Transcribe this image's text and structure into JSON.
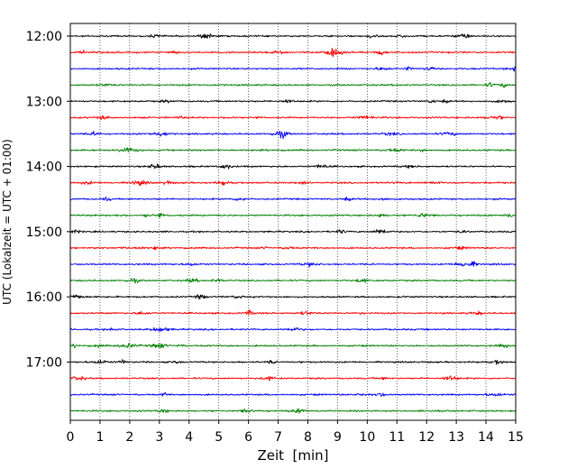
{
  "chart_data": {
    "type": "line",
    "subtype": "helicorder",
    "xlabel": "Zeit  [min]",
    "ylabel": "UTC (Lokalzeit = UTC + 01:00)",
    "xlim": [
      0,
      15
    ],
    "x_ticks": [
      0,
      1,
      2,
      3,
      4,
      5,
      6,
      7,
      8,
      9,
      10,
      11,
      12,
      13,
      14,
      15
    ],
    "x_tick_labels": [
      "0",
      "1",
      "2",
      "3",
      "4",
      "5",
      "6",
      "7",
      "8",
      "9",
      "10",
      "11",
      "12",
      "13",
      "14",
      "15"
    ],
    "y_tick_labels": [
      "12:00",
      "13:00",
      "14:00",
      "15:00",
      "16:00",
      "17:00"
    ],
    "grid": "vertical dotted",
    "trace_interval_minutes": 15,
    "trace_colors": [
      "#000000",
      "#ff0000",
      "#0000ff",
      "#008000"
    ],
    "traces": [
      {
        "start": "12:00",
        "color": "#000000"
      },
      {
        "start": "12:15",
        "color": "#ff0000"
      },
      {
        "start": "12:30",
        "color": "#0000ff"
      },
      {
        "start": "12:45",
        "color": "#008000"
      },
      {
        "start": "13:00",
        "color": "#000000"
      },
      {
        "start": "13:15",
        "color": "#ff0000"
      },
      {
        "start": "13:30",
        "color": "#0000ff"
      },
      {
        "start": "13:45",
        "color": "#008000"
      },
      {
        "start": "14:00",
        "color": "#000000"
      },
      {
        "start": "14:15",
        "color": "#ff0000"
      },
      {
        "start": "14:30",
        "color": "#0000ff"
      },
      {
        "start": "14:45",
        "color": "#008000"
      },
      {
        "start": "15:00",
        "color": "#000000"
      },
      {
        "start": "15:15",
        "color": "#ff0000"
      },
      {
        "start": "15:30",
        "color": "#0000ff"
      },
      {
        "start": "15:45",
        "color": "#008000"
      },
      {
        "start": "16:00",
        "color": "#000000"
      },
      {
        "start": "16:15",
        "color": "#ff0000"
      },
      {
        "start": "16:30",
        "color": "#0000ff"
      },
      {
        "start": "16:45",
        "color": "#008000"
      },
      {
        "start": "17:00",
        "color": "#000000"
      },
      {
        "start": "17:15",
        "color": "#ff0000"
      },
      {
        "start": "17:30",
        "color": "#0000ff"
      },
      {
        "start": "17:45",
        "color": "#008000"
      }
    ]
  }
}
